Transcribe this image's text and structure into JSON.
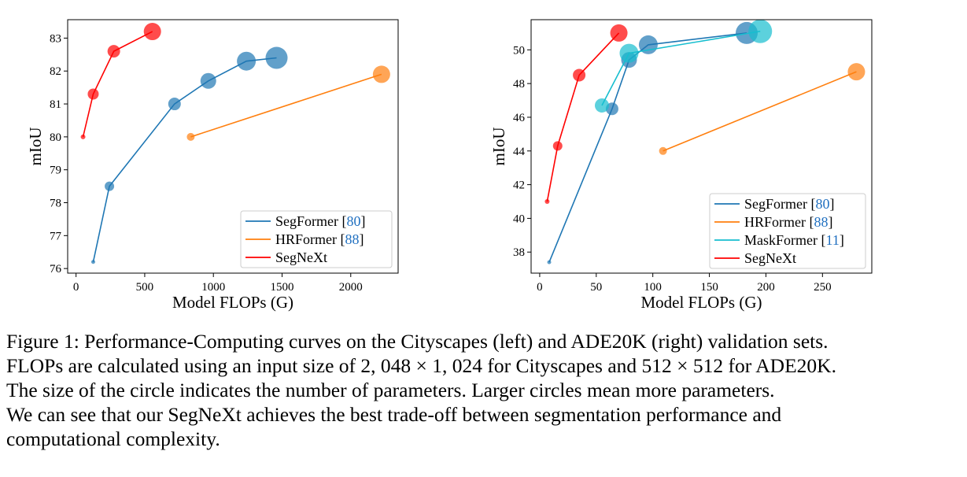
{
  "chart_data": [
    {
      "type": "scatter",
      "panel": "left",
      "xlabel": "Model FLOPs (G)",
      "ylabel": "mIoU",
      "xlim": [
        -61,
        2345
      ],
      "ylim": [
        75.86,
        83.56
      ],
      "xticks": [
        0,
        500,
        1000,
        1500,
        2000
      ],
      "yticks": [
        76,
        77,
        78,
        79,
        80,
        81,
        82,
        83
      ],
      "grid": false,
      "legend_position": "lower-right",
      "series": [
        {
          "name": "SegFormer",
          "cite": "80",
          "color": "#1f77b4",
          "x": [
            125,
            243,
            717,
            963,
            1240,
            1460
          ],
          "y": [
            76.2,
            78.5,
            81.0,
            81.7,
            82.3,
            82.4
          ],
          "marker_size": [
            2.5,
            6,
            8,
            10,
            12,
            14
          ]
        },
        {
          "name": "HRFormer",
          "cite": "88",
          "color": "#ff7f0e",
          "x": [
            835,
            2224
          ],
          "y": [
            80.0,
            81.9
          ],
          "marker_size": [
            5,
            11
          ]
        },
        {
          "name": "SegNeXt",
          "cite": "",
          "color": "#ff0000",
          "x": [
            51,
            125,
            275,
            556
          ],
          "y": [
            80.0,
            81.3,
            82.6,
            83.2
          ],
          "marker_size": [
            3,
            7,
            8,
            11
          ]
        }
      ]
    },
    {
      "type": "scatter",
      "panel": "right",
      "xlabel": "Model FLOPs (G)",
      "ylabel": "mIoU",
      "xlim": [
        -7.6,
        293.6
      ],
      "ylim": [
        36.75,
        51.79
      ],
      "xticks": [
        0,
        50,
        100,
        150,
        200,
        250
      ],
      "yticks": [
        38,
        40,
        42,
        44,
        46,
        48,
        50
      ],
      "grid": false,
      "legend_position": "lower-right",
      "series": [
        {
          "name": "SegFormer",
          "cite": "80",
          "color": "#1f77b4",
          "x": [
            8.4,
            64,
            79,
            96,
            183
          ],
          "y": [
            37.4,
            46.5,
            49.4,
            50.3,
            51.0
          ],
          "marker_size": [
            2.5,
            8,
            10,
            12,
            14
          ]
        },
        {
          "name": "HRFormer",
          "cite": "88",
          "color": "#ff7f0e",
          "x": [
            109,
            280
          ],
          "y": [
            44.0,
            48.7
          ],
          "marker_size": [
            5,
            11
          ]
        },
        {
          "name": "MaskFormer",
          "cite": "11",
          "color": "#17becf",
          "x": [
            55,
            79,
            195
          ],
          "y": [
            46.7,
            49.8,
            51.1
          ],
          "marker_size": [
            9,
            12,
            15
          ]
        },
        {
          "name": "SegNeXt",
          "cite": "",
          "color": "#ff0000",
          "x": [
            6.6,
            15.9,
            34.9,
            70
          ],
          "y": [
            41.0,
            44.3,
            48.5,
            51.0
          ],
          "marker_size": [
            3,
            6,
            8,
            11
          ]
        }
      ]
    }
  ],
  "cite_color": "#1f6fc0",
  "caption": {
    "lines": [
      "Figure 1: Performance-Computing curves on the Cityscapes (left) and ADE20K (right) validation sets.",
      "FLOPs are calculated using an input size of 2, 048 × 1, 024 for Cityscapes and 512 × 512 for ADE20K.",
      "The size of the circle indicates the number of parameters. Larger circles mean more parameters.",
      "We can see that our SegNeXt achieves the best trade-off between segmentation performance and",
      "computational complexity."
    ]
  }
}
